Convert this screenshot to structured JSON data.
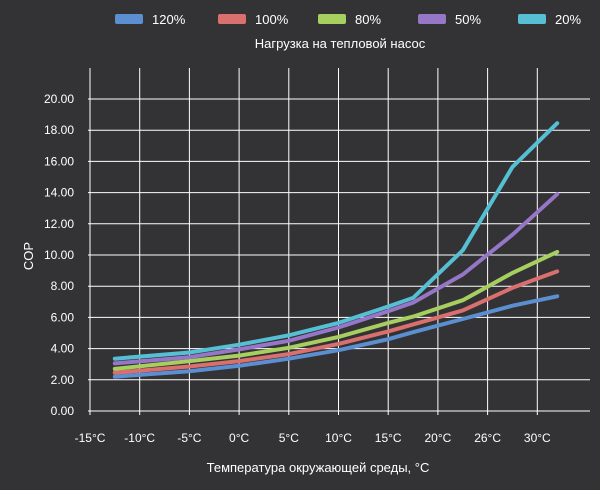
{
  "chart_data": {
    "type": "line",
    "legend_title": "Нагрузка на тепловой насос",
    "legend_position": "top",
    "xlabel": "Температура окружающей среды, °C",
    "ylabel": "COP",
    "x_tick_labels": [
      "-15°C",
      "-10°C",
      "-5°C",
      "0°C",
      "5°C",
      "10°C",
      "15°C",
      "20°C",
      "26°C",
      "30°C"
    ],
    "y_tick_labels": [
      "0.00",
      "2.00",
      "4.00",
      "6.00",
      "8.00",
      "10.00",
      "12.00",
      "14.00",
      "16.00",
      "18.00",
      "20.00"
    ],
    "ylim": [
      0,
      20
    ],
    "grid": true,
    "series": [
      {
        "name": "120%",
        "color": "#5b8fd1",
        "points": [
          [
            -12.5,
            2.2
          ],
          [
            -5,
            2.55
          ],
          [
            0,
            2.9
          ],
          [
            5,
            3.35
          ],
          [
            10,
            3.9
          ],
          [
            15,
            4.6
          ],
          [
            17.5,
            5.05
          ],
          [
            22.5,
            5.9
          ],
          [
            27.5,
            6.75
          ],
          [
            32,
            7.35
          ]
        ]
      },
      {
        "name": "100%",
        "color": "#d9706e",
        "points": [
          [
            -12.5,
            2.45
          ],
          [
            -5,
            2.85
          ],
          [
            0,
            3.2
          ],
          [
            5,
            3.65
          ],
          [
            10,
            4.3
          ],
          [
            15,
            5.1
          ],
          [
            17.5,
            5.55
          ],
          [
            22.5,
            6.45
          ],
          [
            27.5,
            7.9
          ],
          [
            32,
            8.95
          ]
        ]
      },
      {
        "name": "80%",
        "color": "#a6cf5f",
        "points": [
          [
            -12.5,
            2.7
          ],
          [
            -5,
            3.2
          ],
          [
            0,
            3.55
          ],
          [
            5,
            4.05
          ],
          [
            10,
            4.75
          ],
          [
            15,
            5.65
          ],
          [
            17.5,
            6.05
          ],
          [
            22.5,
            7.1
          ],
          [
            27.5,
            8.85
          ],
          [
            32,
            10.2
          ]
        ]
      },
      {
        "name": "50%",
        "color": "#9676c6",
        "points": [
          [
            -12.5,
            3.05
          ],
          [
            -5,
            3.45
          ],
          [
            0,
            3.95
          ],
          [
            5,
            4.5
          ],
          [
            10,
            5.35
          ],
          [
            15,
            6.4
          ],
          [
            17.5,
            6.95
          ],
          [
            22.5,
            8.75
          ],
          [
            27.5,
            11.3
          ],
          [
            32,
            13.9
          ]
        ]
      },
      {
        "name": "20%",
        "color": "#56bfd4",
        "points": [
          [
            -12.5,
            3.35
          ],
          [
            -5,
            3.75
          ],
          [
            0,
            4.25
          ],
          [
            5,
            4.85
          ],
          [
            10,
            5.65
          ],
          [
            15,
            6.7
          ],
          [
            17.5,
            7.25
          ],
          [
            22.5,
            10.3
          ],
          [
            27.5,
            15.65
          ],
          [
            32,
            18.45
          ]
        ]
      }
    ]
  }
}
